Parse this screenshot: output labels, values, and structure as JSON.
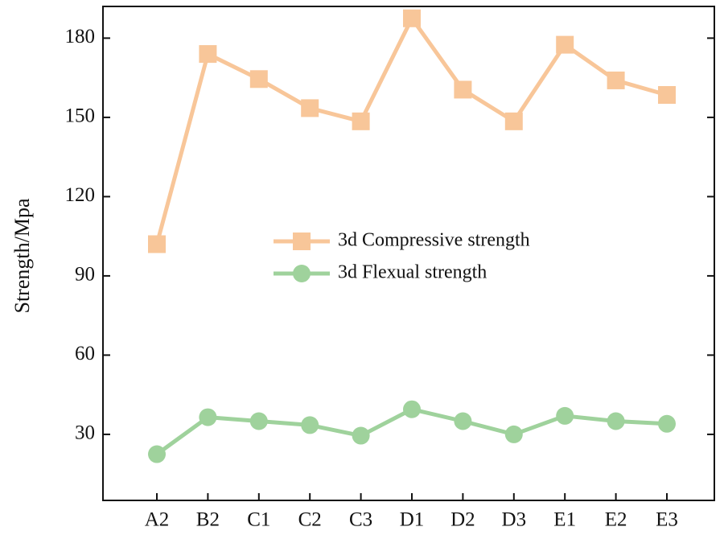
{
  "chart_data": {
    "type": "line",
    "title": "",
    "xlabel": "",
    "ylabel": "Strength/Mpa",
    "categories": [
      "A2",
      "B2",
      "C1",
      "C2",
      "C3",
      "D1",
      "D2",
      "D3",
      "E1",
      "E2",
      "E3"
    ],
    "ylim": [
      5,
      192
    ],
    "yticks": [
      30,
      60,
      90,
      120,
      150,
      180
    ],
    "grid": false,
    "legend_position": "center",
    "series": [
      {
        "name": "3d Compressive strength",
        "marker": "square",
        "color": "#F8C699",
        "values": [
          102,
          174,
          164.5,
          153.5,
          148.5,
          187.5,
          160.5,
          148.5,
          177.5,
          164,
          158.5
        ]
      },
      {
        "name": "3d Flexual strength",
        "marker": "circle",
        "color": "#9FD29C",
        "values": [
          22.5,
          36.5,
          35,
          33.5,
          29.5,
          39.5,
          35,
          30,
          37,
          35,
          34
        ]
      }
    ]
  }
}
